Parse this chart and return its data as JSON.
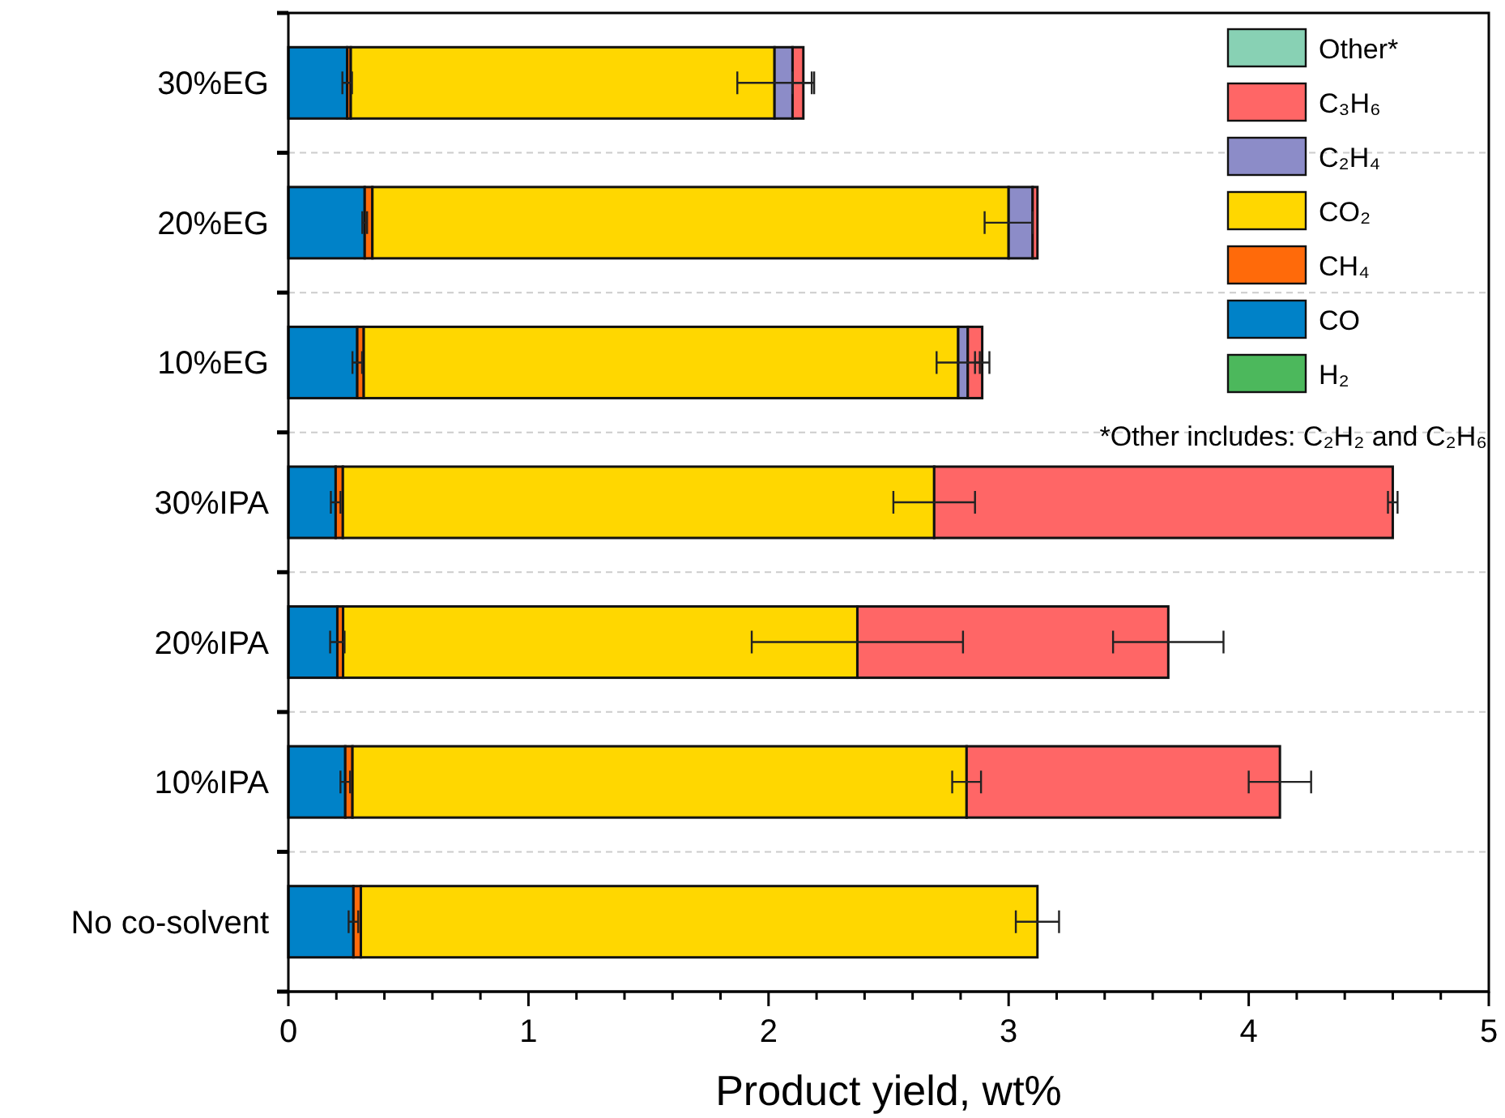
{
  "chart_data": {
    "type": "bar",
    "orientation": "horizontal",
    "stacked": true,
    "xlabel": "Product yield, wt%",
    "categories": [
      "30%EG",
      "20%EG",
      "10%EG",
      "30%IPA",
      "20%IPA",
      "10%IPA",
      "No co-solvent"
    ],
    "series": [
      {
        "name": "H₂",
        "color": "#4cb85c",
        "values": [
          0,
          0,
          0,
          0,
          0,
          0,
          0
        ]
      },
      {
        "name": "CO",
        "color": "#0082c8",
        "values": [
          0.245,
          0.318,
          0.287,
          0.197,
          0.204,
          0.237,
          0.271
        ],
        "errors": [
          0.02,
          0.01,
          0.02,
          0.02,
          0.03,
          0.02,
          0.02
        ]
      },
      {
        "name": "CH₄",
        "color": "#ff6a0a",
        "values": [
          0.015,
          0.032,
          0.027,
          0.03,
          0.024,
          0.03,
          0.031
        ]
      },
      {
        "name": "CO₂",
        "color": "#ffd700",
        "values": [
          1.765,
          2.65,
          2.476,
          2.463,
          2.142,
          2.558,
          2.818
        ],
        "errors": [
          0.155,
          0.1,
          0.09,
          0.17,
          0.44,
          0.06,
          0.09
        ]
      },
      {
        "name": "C₂H₄",
        "color": "#8c8cc8",
        "values": [
          0.075,
          0.1,
          0.04,
          0,
          0,
          0,
          0
        ]
      },
      {
        "name": "C₃H₆",
        "color": "#ff6666",
        "values": [
          0.045,
          0.02,
          0.06,
          1.91,
          1.295,
          1.305,
          0
        ],
        "errors": [
          0.045,
          null,
          0.03,
          0.02,
          0.23,
          0.13,
          null
        ]
      },
      {
        "name": "Other*",
        "color": "#88d1b4",
        "values": [
          0,
          0,
          0,
          0,
          0,
          0,
          0
        ]
      }
    ],
    "xlim": [
      0,
      5
    ],
    "xticks": [
      0,
      {
        "value": 0.2,
        "label": null
      },
      {
        "value": 0.4,
        "label": null
      },
      {
        "value": 0.6,
        "label": null
      },
      {
        "value": 0.8,
        "label": null
      },
      1,
      {
        "value": 1.2,
        "label": null
      },
      {
        "value": 1.4,
        "label": null
      },
      {
        "value": 1.6,
        "label": null
      },
      {
        "value": 1.8,
        "label": null
      },
      2,
      {
        "value": 2.2,
        "label": null
      },
      {
        "value": 2.4,
        "label": null
      },
      {
        "value": 2.6,
        "label": null
      },
      {
        "value": 2.8,
        "label": null
      },
      3,
      {
        "value": 3.2,
        "label": null
      },
      {
        "value": 3.4,
        "label": null
      },
      {
        "value": 3.6,
        "label": null
      },
      {
        "value": 3.8,
        "label": null
      },
      4,
      {
        "value": 4.2,
        "label": null
      },
      {
        "value": 4.4,
        "label": null
      },
      {
        "value": 4.6,
        "label": null
      },
      {
        "value": 4.8,
        "label": null
      },
      5
    ],
    "grid": "y",
    "legend": "top right",
    "annotations": [
      "*Other includes: C₂H₂ and C₂H₆"
    ]
  }
}
